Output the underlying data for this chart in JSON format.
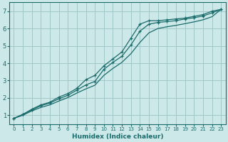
{
  "xlabel": "Humidex (Indice chaleur)",
  "ylabel": "",
  "xlim": [
    -0.5,
    23.5
  ],
  "ylim": [
    0.5,
    7.5
  ],
  "xticks": [
    0,
    1,
    2,
    3,
    4,
    5,
    6,
    7,
    8,
    9,
    10,
    11,
    12,
    13,
    14,
    15,
    16,
    17,
    18,
    19,
    20,
    21,
    22,
    23
  ],
  "yticks": [
    1,
    2,
    3,
    4,
    5,
    6,
    7
  ],
  "bg_color": "#cde8e8",
  "grid_color": "#a0c8c8",
  "line_color": "#1a6b6b",
  "line1_x": [
    0,
    1,
    2,
    3,
    4,
    5,
    6,
    7,
    8,
    9,
    10,
    11,
    12,
    13,
    14,
    15,
    16,
    17,
    18,
    19,
    20,
    21,
    22,
    23
  ],
  "line1_y": [
    0.82,
    1.05,
    1.35,
    1.6,
    1.75,
    2.05,
    2.25,
    2.55,
    3.05,
    3.3,
    3.85,
    4.25,
    4.65,
    5.45,
    6.25,
    6.45,
    6.45,
    6.5,
    6.55,
    6.6,
    6.7,
    6.8,
    7.0,
    7.1
  ],
  "line2_x": [
    0,
    1,
    2,
    3,
    4,
    5,
    6,
    7,
    8,
    9,
    10,
    11,
    12,
    13,
    14,
    15,
    16,
    17,
    18,
    19,
    20,
    21,
    22,
    23
  ],
  "line2_y": [
    0.82,
    1.05,
    1.3,
    1.55,
    1.7,
    1.95,
    2.15,
    2.45,
    2.75,
    2.95,
    3.65,
    4.05,
    4.4,
    5.05,
    5.85,
    6.25,
    6.35,
    6.4,
    6.45,
    6.55,
    6.62,
    6.72,
    6.9,
    7.1
  ],
  "line3_x": [
    0,
    1,
    2,
    3,
    4,
    5,
    6,
    7,
    8,
    9,
    10,
    11,
    12,
    13,
    14,
    15,
    16,
    17,
    18,
    19,
    20,
    21,
    22,
    23
  ],
  "line3_y": [
    0.82,
    1.0,
    1.25,
    1.45,
    1.6,
    1.82,
    2.02,
    2.28,
    2.52,
    2.73,
    3.3,
    3.7,
    4.05,
    4.55,
    5.2,
    5.75,
    6.0,
    6.1,
    6.18,
    6.28,
    6.38,
    6.5,
    6.68,
    7.1
  ]
}
